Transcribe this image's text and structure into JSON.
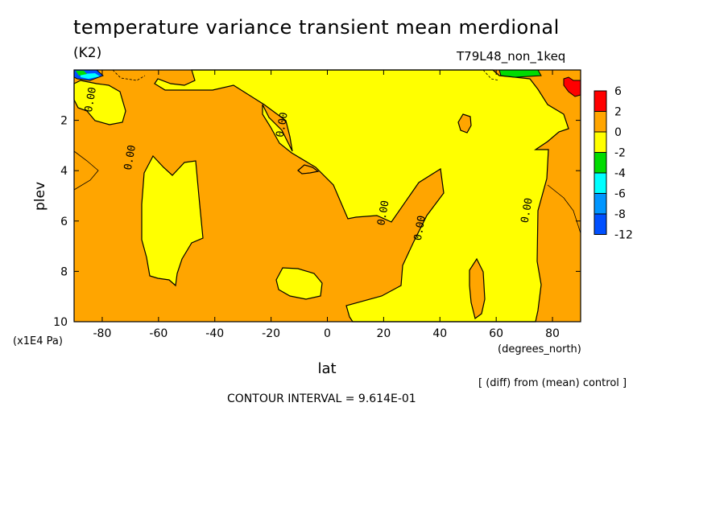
{
  "title": "temperature variance transient mean merdional",
  "units": "(K2)",
  "run_label": "T79L48_non_1keq",
  "footnote": "[ (diff) from (mean) control ]",
  "contour_interval": "CONTOUR INTERVAL = 9.614E-01",
  "colors": {
    "pos_2_6": "#ffa500",
    "pos_6": "#ff0000",
    "zero_neg2": "#ffff00",
    "neg2_neg4": "#00dc00",
    "neg4_neg6": "#00ffff",
    "neg6_neg8": "#0096ff",
    "neg8_neg12": "#0050ff"
  },
  "chart_data": {
    "type": "heatmap",
    "xlabel": "lat",
    "xunit": "(degrees_north)",
    "ylabel": "plev",
    "yunit": "(x1E4 Pa)",
    "xlim": [
      -90,
      90
    ],
    "ylim": [
      0,
      10
    ],
    "y_inverted": true,
    "xticks": [
      -80,
      -60,
      -40,
      -20,
      0,
      20,
      40,
      60,
      80
    ],
    "xtick_labels": [
      "-80",
      "-60",
      "-40",
      "-20",
      "0",
      "20",
      "40",
      "60",
      "80"
    ],
    "yticks": [
      2,
      4,
      6,
      8,
      10
    ],
    "ytick_labels": [
      "2",
      "4",
      "6",
      "8",
      "10"
    ],
    "colorbar": {
      "levels": [
        "6",
        "2",
        "0",
        "-2",
        "-4",
        "-6",
        "-8",
        "-12"
      ],
      "colors": [
        "#ff0000",
        "#ffa500",
        "#ffff00",
        "#00dc00",
        "#00ffff",
        "#0096ff",
        "#0050ff"
      ]
    },
    "contour_labels": [
      {
        "text": "0.00",
        "lat": -83,
        "plev": 1.2
      },
      {
        "text": "0.00",
        "lat": -15,
        "plev": 2.2
      },
      {
        "text": "0.00",
        "lat": -69,
        "plev": 3.5
      },
      {
        "text": "0.00",
        "lat": 21,
        "plev": 5.7
      },
      {
        "text": "0.00",
        "lat": 34,
        "plev": 6.3
      },
      {
        "text": "0.00",
        "lat": 72,
        "plev": 5.6
      }
    ],
    "regions": [
      {
        "value": "0 to -2",
        "lat": [
          -68,
          -40
        ],
        "plev": [
          3.5,
          8.5
        ]
      },
      {
        "value": "0 to -2",
        "lat": [
          -20,
          50
        ],
        "plev": [
          0.2,
          10
        ]
      },
      {
        "value": "0 to -2",
        "lat": [
          50,
          78
        ],
        "plev": [
          0.2,
          10
        ]
      },
      {
        "value": "0 to -2",
        "lat": [
          -85,
          -75
        ],
        "plev": [
          0.2,
          2.2
        ]
      },
      {
        "value": "0 to -2",
        "lat": [
          -14,
          -1
        ],
        "plev": [
          7.8,
          9
        ]
      },
      {
        "value": "6+",
        "lat": [
          81,
          90
        ],
        "plev": [
          0.2,
          0.8
        ]
      },
      {
        "value": "-8 to -12",
        "lat": [
          -90,
          -82
        ],
        "plev": [
          0.2,
          0.4
        ]
      }
    ]
  }
}
